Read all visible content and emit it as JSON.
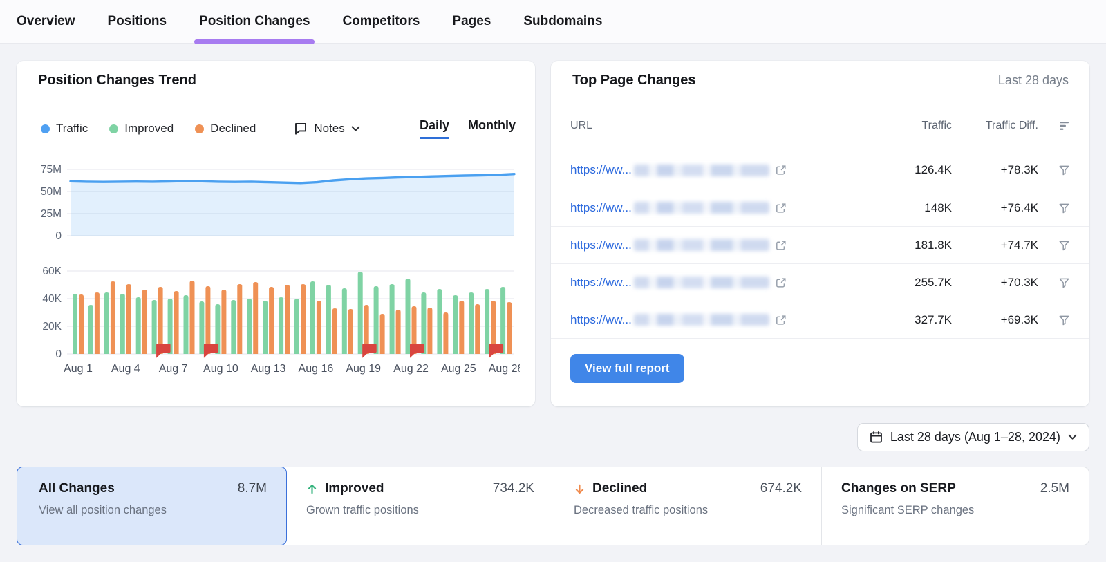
{
  "nav": {
    "tabs": [
      {
        "label": "Overview",
        "active": false
      },
      {
        "label": "Positions",
        "active": false
      },
      {
        "label": "Position Changes",
        "active": true
      },
      {
        "label": "Competitors",
        "active": false
      },
      {
        "label": "Pages",
        "active": false
      },
      {
        "label": "Subdomains",
        "active": false
      }
    ]
  },
  "trend_card": {
    "title": "Position Changes Trend",
    "legend": [
      {
        "label": "Traffic",
        "color": "#4fa0f2"
      },
      {
        "label": "Improved",
        "color": "#7fd3a4"
      },
      {
        "label": "Declined",
        "color": "#ef9155"
      }
    ],
    "notes_label": "Notes",
    "granularity": {
      "options": [
        {
          "label": "Daily",
          "active": true
        },
        {
          "label": "Monthly",
          "active": false
        }
      ]
    }
  },
  "chart_data": [
    {
      "type": "area",
      "name": "traffic-trend",
      "x": [
        "Aug 1",
        "Aug 2",
        "Aug 3",
        "Aug 4",
        "Aug 5",
        "Aug 6",
        "Aug 7",
        "Aug 8",
        "Aug 9",
        "Aug 10",
        "Aug 11",
        "Aug 12",
        "Aug 13",
        "Aug 14",
        "Aug 15",
        "Aug 16",
        "Aug 17",
        "Aug 18",
        "Aug 19",
        "Aug 20",
        "Aug 21",
        "Aug 22",
        "Aug 23",
        "Aug 24",
        "Aug 25",
        "Aug 26",
        "Aug 27",
        "Aug 28"
      ],
      "values": [
        61.5,
        61,
        60.8,
        61,
        61.2,
        61,
        61.3,
        61.8,
        61.5,
        61,
        60.8,
        61,
        60.5,
        60,
        59.5,
        60.5,
        62.5,
        63.8,
        64.8,
        65.3,
        66,
        66.5,
        67,
        67.5,
        68,
        68.3,
        68.8,
        69.8
      ],
      "unit": "M",
      "ylim": [
        0,
        75
      ],
      "ytick_labels": [
        "0",
        "25M",
        "50M",
        "75M"
      ],
      "line_color": "#4aa0f0",
      "fill_color": "rgba(74,160,240,0.16)",
      "grid": true
    },
    {
      "type": "bar",
      "name": "improved-declined",
      "categories": [
        "Aug 1",
        "Aug 2",
        "Aug 3",
        "Aug 4",
        "Aug 5",
        "Aug 6",
        "Aug 7",
        "Aug 8",
        "Aug 9",
        "Aug 10",
        "Aug 11",
        "Aug 12",
        "Aug 13",
        "Aug 14",
        "Aug 15",
        "Aug 16",
        "Aug 17",
        "Aug 18",
        "Aug 19",
        "Aug 20",
        "Aug 21",
        "Aug 22",
        "Aug 23",
        "Aug 24",
        "Aug 25",
        "Aug 26",
        "Aug 27",
        "Aug 28"
      ],
      "series": [
        {
          "name": "Improved",
          "color": "#7fd3a4",
          "values": [
            43.5,
            35.5,
            44.5,
            43.5,
            41,
            39,
            40,
            42.5,
            38,
            36,
            39,
            40,
            38.5,
            41,
            40,
            52.5,
            50,
            47.5,
            59.5,
            49,
            50.5,
            54.5,
            44.5,
            47,
            42.5,
            44.5,
            47,
            48.5
          ]
        },
        {
          "name": "Declined",
          "color": "#ef9155",
          "values": [
            43,
            44.5,
            52.5,
            50.5,
            46.5,
            48.5,
            45.5,
            53,
            49,
            46.5,
            50.5,
            52,
            48.5,
            50,
            50.5,
            38.5,
            33,
            32.5,
            35.5,
            29,
            32,
            34.5,
            33.5,
            30,
            38.5,
            36,
            38.5,
            37.5
          ]
        }
      ],
      "unit": "K",
      "ylim": [
        0,
        60
      ],
      "ytick_labels": [
        "0",
        "20K",
        "40K",
        "60K"
      ],
      "x_tick_labels": [
        "Aug 1",
        "Aug 4",
        "Aug 7",
        "Aug 10",
        "Aug 13",
        "Aug 16",
        "Aug 19",
        "Aug 22",
        "Aug 25",
        "Aug 28"
      ],
      "note_flag_dates": [
        "Aug 6",
        "Aug 9",
        "Aug 19",
        "Aug 22",
        "Aug 27"
      ],
      "note_flag_color": "#d9453f",
      "grid": true
    }
  ],
  "top_pages": {
    "title": "Top Page Changes",
    "period": "Last 28 days",
    "columns": {
      "url": "URL",
      "traffic": "Traffic",
      "diff": "Traffic Diff."
    },
    "rows": [
      {
        "url_prefix": "https://ww...",
        "traffic": "126.4K",
        "diff": "+78.3K"
      },
      {
        "url_prefix": "https://ww...",
        "traffic": "148K",
        "diff": "+76.4K"
      },
      {
        "url_prefix": "https://ww...",
        "traffic": "181.8K",
        "diff": "+74.7K"
      },
      {
        "url_prefix": "https://ww...",
        "traffic": "255.7K",
        "diff": "+70.3K"
      },
      {
        "url_prefix": "https://ww...",
        "traffic": "327.7K",
        "diff": "+69.3K"
      }
    ],
    "cta_label": "View full report"
  },
  "date_filter": {
    "label": "Last 28 days (Aug 1–28, 2024)"
  },
  "summary_cards": [
    {
      "title": "All Changes",
      "value": "8.7M",
      "subtitle": "View all position changes",
      "selected": true
    },
    {
      "title": "Improved",
      "value": "734.2K",
      "subtitle": "Grown traffic positions",
      "icon_color": "#33b27c"
    },
    {
      "title": "Declined",
      "value": "674.2K",
      "subtitle": "Decreased traffic positions",
      "icon_color": "#f08a4c"
    },
    {
      "title": "Changes on SERP",
      "value": "2.5M",
      "subtitle": "Significant SERP changes"
    }
  ]
}
